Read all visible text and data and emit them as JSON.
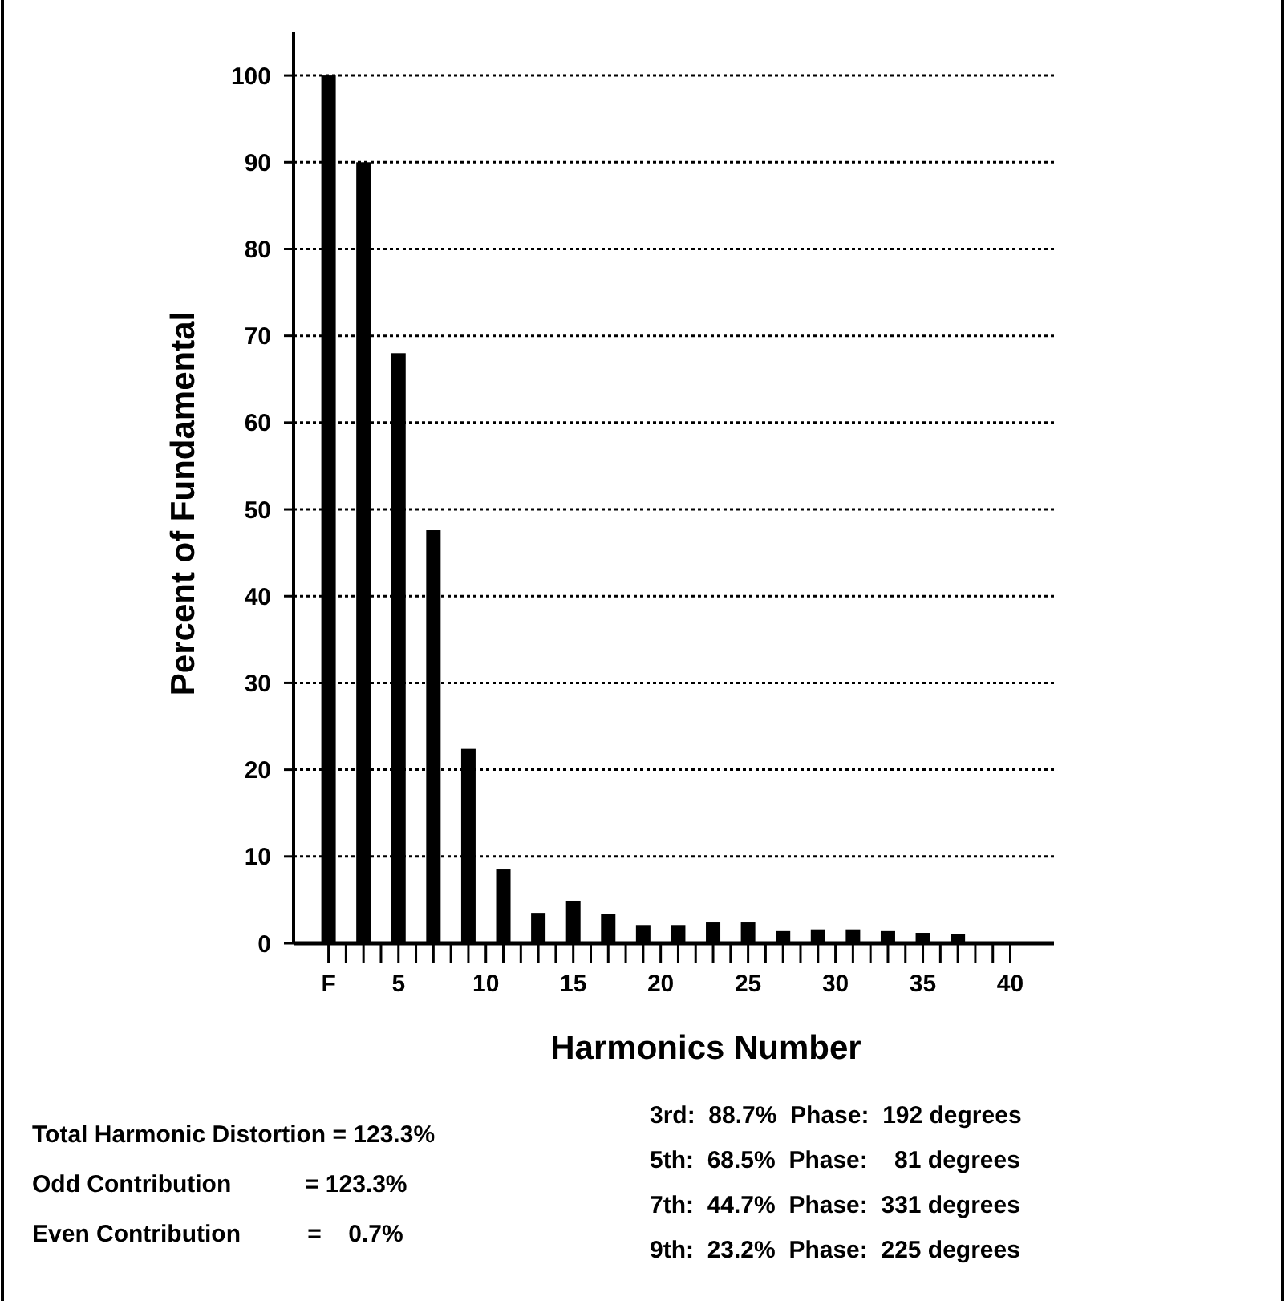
{
  "chart_data": {
    "type": "bar",
    "xlabel": "Harmonics Number",
    "ylabel": "Percent of Fundamental",
    "x": [
      1,
      3,
      5,
      7,
      9,
      11,
      13,
      15,
      17,
      19,
      21,
      23,
      25,
      27,
      29,
      31,
      33,
      35,
      37
    ],
    "values": [
      100,
      90,
      68,
      47.6,
      22.4,
      8.5,
      3.5,
      4.9,
      3.4,
      2.1,
      2.1,
      2.4,
      2.4,
      1.4,
      1.6,
      1.6,
      1.4,
      1.2,
      1.1
    ],
    "color": "#000000",
    "xlim": [
      -1,
      42.5
    ],
    "xticks": [
      {
        "value": 1,
        "label": "F"
      },
      {
        "value": 2,
        "label": null
      },
      {
        "value": 3,
        "label": null
      },
      {
        "value": 4,
        "label": null
      },
      5,
      {
        "value": 6,
        "label": null
      },
      {
        "value": 7,
        "label": null
      },
      {
        "value": 8,
        "label": null
      },
      {
        "value": 9,
        "label": null
      },
      10,
      {
        "value": 11,
        "label": null
      },
      {
        "value": 12,
        "label": null
      },
      {
        "value": 13,
        "label": null
      },
      {
        "value": 14,
        "label": null
      },
      15,
      {
        "value": 16,
        "label": null
      },
      {
        "value": 17,
        "label": null
      },
      {
        "value": 18,
        "label": null
      },
      {
        "value": 19,
        "label": null
      },
      20,
      {
        "value": 21,
        "label": null
      },
      {
        "value": 22,
        "label": null
      },
      {
        "value": 23,
        "label": null
      },
      {
        "value": 24,
        "label": null
      },
      25,
      {
        "value": 26,
        "label": null
      },
      {
        "value": 27,
        "label": null
      },
      {
        "value": 28,
        "label": null
      },
      {
        "value": 29,
        "label": null
      },
      30,
      {
        "value": 31,
        "label": null
      },
      {
        "value": 32,
        "label": null
      },
      {
        "value": 33,
        "label": null
      },
      {
        "value": 34,
        "label": null
      },
      35,
      {
        "value": 36,
        "label": null
      },
      {
        "value": 37,
        "label": null
      },
      {
        "value": 38,
        "label": null
      },
      {
        "value": 39,
        "label": null
      },
      40
    ],
    "ylim": [
      0,
      105
    ],
    "yticks": [
      0,
      10,
      20,
      30,
      40,
      50,
      60,
      70,
      80,
      90,
      100
    ],
    "grid": "y",
    "annotations": [
      "Total Harmonic Distortion = 123.3%",
      "Odd Contribution           = 123.3%",
      "Even Contribution          =    0.7%",
      "3rd:  88.7%  Phase:  192 degrees",
      "5th:  68.5%  Phase:    81 degrees",
      "7th:  44.7%  Phase:  331 degrees",
      "9th:  23.2%  Phase:  225 degrees"
    ]
  }
}
